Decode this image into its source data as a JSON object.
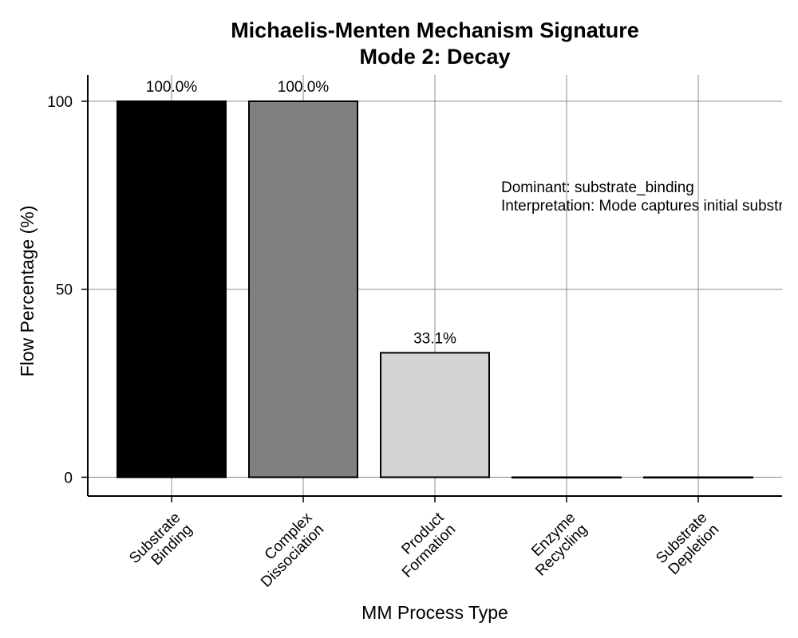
{
  "chart_data": {
    "type": "bar",
    "title": [
      "Michaelis-Menten Mechanism Signature",
      "Mode 2: Decay"
    ],
    "xlabel": "MM Process Type",
    "ylabel": "Flow Percentage (%)",
    "categories": [
      [
        "Substrate",
        "Binding"
      ],
      [
        "Complex",
        "Dissociation"
      ],
      [
        "Product",
        "Formation"
      ],
      [
        "Enzyme",
        "Recycling"
      ],
      [
        "Substrate",
        "Depletion"
      ]
    ],
    "values": [
      100.0,
      100.0,
      33.1,
      0.0,
      0.0
    ],
    "data_labels": [
      "100.0%",
      "100.0%",
      "33.1%",
      "",
      ""
    ],
    "colors": [
      "#000000",
      "#808080",
      "#d3d3d3",
      "#ffffff",
      "#ffffff"
    ],
    "ylim": [
      -5,
      107
    ],
    "yticks": [
      0,
      50,
      100
    ],
    "ytick_labels": [
      "0",
      "50",
      "100"
    ],
    "grid": true,
    "annotation": {
      "lines": [
        "Dominant: substrate_binding",
        "Interpretation: Mode captures initial substrate-enzyme binding"
      ]
    }
  }
}
